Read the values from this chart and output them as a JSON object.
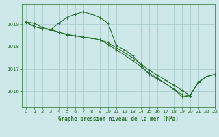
{
  "title": "Graphe pression niveau de la mer (hPa)",
  "background_color": "#cce8e8",
  "grid_color": "#aacccc",
  "line_color": "#2d6e2d",
  "xlim": [
    -0.5,
    23
  ],
  "ylim": [
    1015.3,
    1019.9
  ],
  "yticks": [
    1016,
    1017,
    1018,
    1019
  ],
  "xticks": [
    0,
    1,
    2,
    3,
    4,
    5,
    6,
    7,
    8,
    9,
    10,
    11,
    12,
    13,
    14,
    15,
    16,
    17,
    18,
    19,
    20,
    21,
    22,
    23
  ],
  "series1": {
    "x": [
      0,
      1,
      2,
      3,
      4,
      5,
      6,
      7,
      8,
      9,
      10,
      11,
      12,
      13,
      14,
      15,
      16,
      17,
      18,
      19,
      20,
      21,
      22,
      23
    ],
    "y": [
      1019.1,
      1019.05,
      1018.85,
      1018.75,
      1019.05,
      1019.3,
      1019.45,
      1019.55,
      1019.45,
      1019.3,
      1019.05,
      1018.05,
      1017.85,
      1017.6,
      1017.2,
      1016.75,
      1016.55,
      1016.35,
      1016.1,
      1015.75,
      1015.8,
      1016.4,
      1016.65,
      1016.75
    ]
  },
  "series2": {
    "x": [
      0,
      1,
      2,
      3,
      4,
      5,
      6,
      7,
      8,
      9,
      10,
      11,
      12,
      13,
      14,
      15,
      16,
      17,
      18,
      19,
      20,
      21,
      22,
      23
    ],
    "y": [
      1019.1,
      1018.9,
      1018.8,
      1018.75,
      1018.65,
      1018.55,
      1018.48,
      1018.42,
      1018.38,
      1018.3,
      1018.18,
      1017.95,
      1017.72,
      1017.5,
      1017.22,
      1016.95,
      1016.72,
      1016.5,
      1016.28,
      1016.05,
      1015.8,
      1016.4,
      1016.65,
      1016.75
    ]
  },
  "series3": {
    "x": [
      0,
      1,
      2,
      3,
      4,
      5,
      6,
      7,
      8,
      9,
      10,
      11,
      12,
      13,
      14,
      15,
      16,
      17,
      18,
      19,
      20,
      21,
      22,
      23
    ],
    "y": [
      1019.1,
      1018.9,
      1018.8,
      1018.78,
      1018.65,
      1018.52,
      1018.48,
      1018.42,
      1018.38,
      1018.3,
      1018.1,
      1017.85,
      1017.62,
      1017.38,
      1017.1,
      1016.82,
      1016.58,
      1016.35,
      1016.1,
      1015.85,
      1015.8,
      1016.4,
      1016.65,
      1016.75
    ]
  }
}
